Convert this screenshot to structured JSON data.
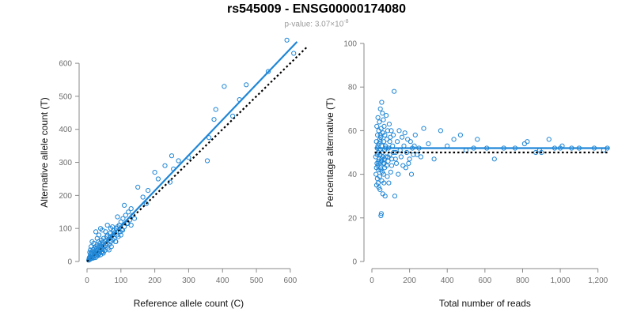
{
  "title": "rs545009 - ENSG00000174080",
  "subtitle": {
    "prefix": "p-value: 3.07×10",
    "exponent": "-8"
  },
  "colors": {
    "points": "#1f86d6",
    "fit": "#1f86d6",
    "reference": "#000000",
    "axis": "#8a8a8a"
  },
  "chart_data": [
    {
      "type": "scatter",
      "xlabel": "Reference allele count (C)",
      "ylabel": "Alternative allele count (T)",
      "xlim": [
        0,
        640
      ],
      "ylim": [
        0,
        660
      ],
      "xticks": [
        0,
        100,
        200,
        300,
        400,
        500,
        600
      ],
      "yticks": [
        0,
        100,
        200,
        300,
        400,
        500,
        600
      ],
      "x_tick_labels": [
        "0",
        "100",
        "200",
        "300",
        "400",
        "500",
        "600"
      ],
      "y_tick_labels": [
        "0",
        "100",
        "200",
        "300",
        "400",
        "500",
        "600"
      ],
      "grid": false,
      "fit_line": {
        "x": [
          5,
          620
        ],
        "y": [
          5,
          665
        ]
      },
      "reference_line": {
        "x": [
          0,
          650
        ],
        "y": [
          0,
          650
        ],
        "style": "dotted"
      },
      "points": [
        [
          5,
          4
        ],
        [
          6,
          9
        ],
        [
          7,
          12
        ],
        [
          8,
          6
        ],
        [
          9,
          15
        ],
        [
          10,
          20
        ],
        [
          11,
          8
        ],
        [
          12,
          25
        ],
        [
          13,
          10
        ],
        [
          14,
          18
        ],
        [
          15,
          30
        ],
        [
          16,
          14
        ],
        [
          17,
          22
        ],
        [
          18,
          35
        ],
        [
          19,
          12
        ],
        [
          20,
          28
        ],
        [
          21,
          40
        ],
        [
          22,
          17
        ],
        [
          23,
          24
        ],
        [
          24,
          32
        ],
        [
          25,
          45
        ],
        [
          26,
          20
        ],
        [
          27,
          38
        ],
        [
          28,
          15
        ],
        [
          29,
          27
        ],
        [
          30,
          50
        ],
        [
          31,
          33
        ],
        [
          32,
          42
        ],
        [
          33,
          22
        ],
        [
          34,
          60
        ],
        [
          35,
          30
        ],
        [
          36,
          48
        ],
        [
          37,
          25
        ],
        [
          38,
          55
        ],
        [
          39,
          35
        ],
        [
          40,
          20
        ],
        [
          41,
          44
        ],
        [
          42,
          65
        ],
        [
          43,
          30
        ],
        [
          44,
          52
        ],
        [
          45,
          40
        ],
        [
          46,
          28
        ],
        [
          47,
          58
        ],
        [
          48,
          36
        ],
        [
          49,
          70
        ],
        [
          50,
          45
        ],
        [
          52,
          33
        ],
        [
          54,
          62
        ],
        [
          56,
          48
        ],
        [
          58,
          75
        ],
        [
          60,
          55
        ],
        [
          62,
          40
        ],
        [
          64,
          68
        ],
        [
          66,
          52
        ],
        [
          68,
          85
        ],
        [
          70,
          60
        ],
        [
          72,
          45
        ],
        [
          74,
          78
        ],
        [
          76,
          65
        ],
        [
          78,
          95
        ],
        [
          80,
          70
        ],
        [
          82,
          88
        ],
        [
          84,
          60
        ],
        [
          86,
          100
        ],
        [
          88,
          80
        ],
        [
          90,
          105
        ],
        [
          92,
          75
        ],
        [
          95,
          110
        ],
        [
          98,
          90
        ],
        [
          100,
          120
        ],
        [
          103,
          95
        ],
        [
          106,
          130
        ],
        [
          110,
          105
        ],
        [
          114,
          140
        ],
        [
          118,
          115
        ],
        [
          122,
          150
        ],
        [
          126,
          125
        ],
        [
          130,
          160
        ],
        [
          135,
          140
        ],
        [
          140,
          130
        ],
        [
          26,
          90
        ],
        [
          30,
          70
        ],
        [
          20,
          55
        ],
        [
          15,
          60
        ],
        [
          40,
          100
        ],
        [
          55,
          90
        ],
        [
          35,
          80
        ],
        [
          45,
          95
        ],
        [
          70,
          100
        ],
        [
          60,
          110
        ],
        [
          10,
          35
        ],
        [
          8,
          28
        ],
        [
          12,
          45
        ],
        [
          18,
          10
        ],
        [
          25,
          12
        ],
        [
          33,
          18
        ],
        [
          48,
          25
        ],
        [
          65,
          35
        ],
        [
          85,
          60
        ],
        [
          100,
          80
        ],
        [
          110,
          170
        ],
        [
          150,
          225
        ],
        [
          165,
          195
        ],
        [
          175,
          175
        ],
        [
          180,
          215
        ],
        [
          200,
          270
        ],
        [
          210,
          250
        ],
        [
          230,
          290
        ],
        [
          245,
          240
        ],
        [
          250,
          320
        ],
        [
          255,
          280
        ],
        [
          270,
          305
        ],
        [
          300,
          315
        ],
        [
          355,
          305
        ],
        [
          360,
          375
        ],
        [
          375,
          430
        ],
        [
          380,
          460
        ],
        [
          405,
          530
        ],
        [
          430,
          440
        ],
        [
          450,
          490
        ],
        [
          470,
          535
        ],
        [
          535,
          575
        ],
        [
          590,
          670
        ],
        [
          610,
          630
        ],
        [
          60,
          80
        ],
        [
          75,
          105
        ],
        [
          90,
          135
        ],
        [
          105,
          95
        ],
        [
          120,
          115
        ],
        [
          130,
          110
        ]
      ]
    },
    {
      "type": "scatter",
      "xlabel": "Total number of reads",
      "ylabel": "Percentage alternative (T)",
      "xlim": [
        0,
        1260
      ],
      "ylim": [
        0,
        100
      ],
      "xticks": [
        0,
        200,
        400,
        600,
        800,
        1000,
        1200
      ],
      "yticks": [
        0,
        20,
        40,
        60,
        80,
        100
      ],
      "x_tick_labels": [
        "0",
        "200",
        "400",
        "600",
        "800",
        "1,000",
        "1,200"
      ],
      "y_tick_labels": [
        "0",
        "20",
        "40",
        "60",
        "80",
        "100"
      ],
      "grid": false,
      "fit_line": {
        "x": [
          15,
          1260
        ],
        "y": [
          52,
          52
        ]
      },
      "reference_line": {
        "x": [
          15,
          1260
        ],
        "y": [
          50,
          50
        ],
        "style": "dotted"
      },
      "points": [
        [
          20,
          48
        ],
        [
          22,
          40
        ],
        [
          24,
          55
        ],
        [
          25,
          35
        ],
        [
          26,
          62
        ],
        [
          27,
          45
        ],
        [
          28,
          52
        ],
        [
          29,
          38
        ],
        [
          30,
          58
        ],
        [
          31,
          44
        ],
        [
          32,
          66
        ],
        [
          33,
          36
        ],
        [
          34,
          50
        ],
        [
          35,
          42
        ],
        [
          36,
          60
        ],
        [
          37,
          34
        ],
        [
          38,
          54
        ],
        [
          39,
          47
        ],
        [
          40,
          64
        ],
        [
          41,
          39
        ],
        [
          42,
          56
        ],
        [
          43,
          33
        ],
        [
          44,
          49
        ],
        [
          45,
          70
        ],
        [
          46,
          43
        ],
        [
          47,
          57
        ],
        [
          48,
          21
        ],
        [
          49,
          61
        ],
        [
          50,
          22
        ],
        [
          51,
          46
        ],
        [
          52,
          73
        ],
        [
          53,
          37
        ],
        [
          54,
          53
        ],
        [
          55,
          41
        ],
        [
          56,
          68
        ],
        [
          57,
          48
        ],
        [
          58,
          31
        ],
        [
          59,
          59
        ],
        [
          60,
          45
        ],
        [
          61,
          65
        ],
        [
          62,
          40
        ],
        [
          63,
          55
        ],
        [
          64,
          36
        ],
        [
          65,
          62
        ],
        [
          66,
          47
        ],
        [
          67,
          51
        ],
        [
          68,
          43
        ],
        [
          69,
          58
        ],
        [
          70,
          30
        ],
        [
          72,
          53
        ],
        [
          74,
          48
        ],
        [
          76,
          67
        ],
        [
          78,
          44
        ],
        [
          80,
          56
        ],
        [
          82,
          39
        ],
        [
          84,
          60
        ],
        [
          86,
          46
        ],
        [
          88,
          52
        ],
        [
          90,
          36
        ],
        [
          92,
          63
        ],
        [
          95,
          49
        ],
        [
          98,
          57
        ],
        [
          100,
          41
        ],
        [
          103,
          60
        ],
        [
          106,
          47
        ],
        [
          110,
          53
        ],
        [
          114,
          58
        ],
        [
          118,
          78
        ],
        [
          122,
          30
        ],
        [
          126,
          50
        ],
        [
          130,
          45
        ],
        [
          135,
          55
        ],
        [
          140,
          40
        ],
        [
          145,
          60
        ],
        [
          150,
          51
        ],
        [
          155,
          48
        ],
        [
          160,
          57
        ],
        [
          165,
          44
        ],
        [
          170,
          53
        ],
        [
          175,
          59
        ],
        [
          180,
          43
        ],
        [
          185,
          50
        ],
        [
          190,
          56
        ],
        [
          195,
          45
        ],
        [
          200,
          47
        ],
        [
          205,
          55
        ],
        [
          210,
          40
        ],
        [
          215,
          52
        ],
        [
          220,
          49
        ],
        [
          225,
          53
        ],
        [
          230,
          58
        ],
        [
          240,
          49
        ],
        [
          250,
          52
        ],
        [
          260,
          48
        ],
        [
          275,
          61
        ],
        [
          300,
          54
        ],
        [
          330,
          47
        ],
        [
          365,
          60
        ],
        [
          400,
          53
        ],
        [
          435,
          56
        ],
        [
          470,
          58
        ],
        [
          500,
          51
        ],
        [
          540,
          52
        ],
        [
          560,
          56
        ],
        [
          610,
          52
        ],
        [
          650,
          47
        ],
        [
          700,
          52
        ],
        [
          760,
          52
        ],
        [
          810,
          54
        ],
        [
          825,
          55
        ],
        [
          870,
          50
        ],
        [
          890,
          51
        ],
        [
          900,
          50
        ],
        [
          940,
          56
        ],
        [
          970,
          52
        ],
        [
          1000,
          52
        ],
        [
          1010,
          53
        ],
        [
          1060,
          52
        ],
        [
          1100,
          52
        ],
        [
          1180,
          52
        ],
        [
          1230,
          51
        ],
        [
          1250,
          52
        ],
        [
          35,
          46
        ],
        [
          45,
          58
        ],
        [
          55,
          50
        ],
        [
          65,
          45
        ],
        [
          75,
          52
        ],
        [
          85,
          48
        ],
        [
          95,
          55
        ],
        [
          105,
          44
        ],
        [
          115,
          50
        ],
        [
          125,
          47
        ],
        [
          24,
          43
        ],
        [
          28,
          49
        ],
        [
          32,
          53
        ],
        [
          36,
          45
        ],
        [
          40,
          51
        ],
        [
          44,
          55
        ],
        [
          48,
          42
        ],
        [
          52,
          47
        ]
      ]
    }
  ]
}
